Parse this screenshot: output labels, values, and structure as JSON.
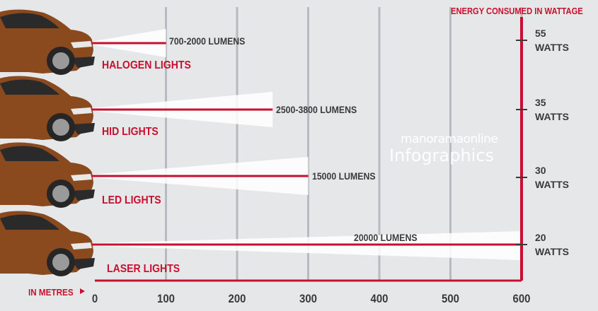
{
  "chart_data": {
    "type": "bar",
    "orientation": "horizontal",
    "title": "",
    "xlabel": "IN METRES",
    "ylabel": "",
    "secondary_axis_title": "ENERGY CONSUMED IN WATTAGE",
    "xlim": [
      0,
      600
    ],
    "x_ticks": [
      "0",
      "100",
      "200",
      "300",
      "400",
      "500",
      "600"
    ],
    "x_tick_values": [
      0,
      100,
      200,
      300,
      400,
      500,
      600
    ],
    "grid": true,
    "categories": [
      "HALOGEN LIGHTS",
      "HID LIGHTS",
      "LED LIGHTS",
      "LASER LIGHTS"
    ],
    "values": [
      100,
      250,
      300,
      600
    ],
    "units": "metres",
    "lumens_labels": [
      "700-2000 LUMENS",
      "2500-3800 LUMENS",
      "15000 LUMENS",
      "20000 LUMENS"
    ],
    "wattage": [
      {
        "value": "55",
        "unit": "WATTS"
      },
      {
        "value": "35",
        "unit": "WATTS"
      },
      {
        "value": "30",
        "unit": "WATTS"
      },
      {
        "value": "20",
        "unit": "WATTS"
      }
    ],
    "watermark": {
      "line1": "manoramaonline",
      "line2": "Infographics"
    },
    "colors": {
      "accent": "#c8102e",
      "background": "#e6e7e9",
      "grid": "#b8babd",
      "text": "#3a3a3a",
      "car_body": "#8a4a1e",
      "beam": "#ffffff"
    }
  }
}
